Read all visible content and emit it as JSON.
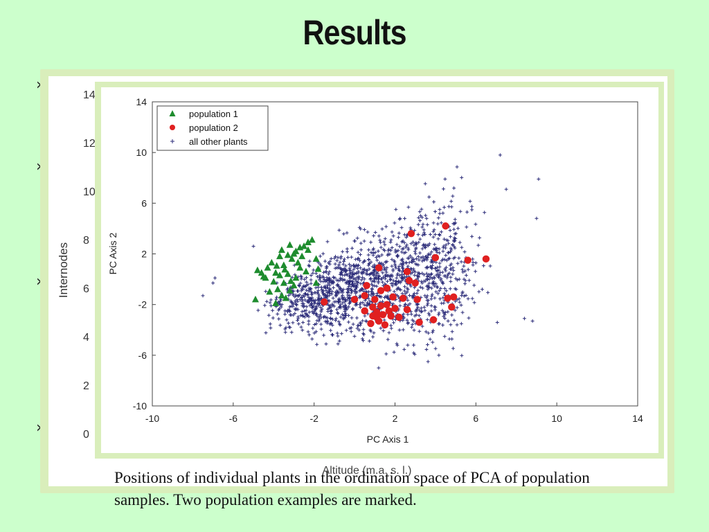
{
  "slide": {
    "title": "Results",
    "bullet_glyph": "›",
    "caption": "Positions of individual plants in the ordination space of PCA of population samples. Two population examples are marked."
  },
  "background_plot": {
    "ylabel": "Internodes",
    "xlabel": "Altitude (m.a. s. l.)",
    "y_ticks": [
      "14",
      "12",
      "10",
      "8",
      "6",
      "4",
      "2",
      "0"
    ]
  },
  "colors": {
    "slide_background": "#ccffcc",
    "frame": "#d9eebb",
    "population_1": "#1e8c2e",
    "population_2": "#e02020",
    "all_other_plants": "#2a2a78"
  },
  "chart_data": {
    "type": "scatter",
    "xlabel": "PC Axis 1",
    "ylabel": "PC Axis 2",
    "xlim": [
      -10,
      14
    ],
    "ylim": [
      -10,
      14
    ],
    "x_ticks": [
      -10,
      -6,
      -2,
      2,
      6,
      10,
      14
    ],
    "y_ticks": [
      -10,
      -6,
      -2,
      2,
      6,
      10,
      14
    ],
    "legend_position": "top-left",
    "series": [
      {
        "name": "population 1",
        "marker": "triangle",
        "points": [
          [
            -4.8,
            0.7
          ],
          [
            -4.5,
            0.2
          ],
          [
            -4.3,
            0.9
          ],
          [
            -4.1,
            1.3
          ],
          [
            -3.9,
            0.5
          ],
          [
            -3.7,
            1.8
          ],
          [
            -3.5,
            1.1
          ],
          [
            -3.3,
            0.4
          ],
          [
            -3.1,
            1.6
          ],
          [
            -2.9,
            2.2
          ],
          [
            -2.7,
            2.5
          ],
          [
            -2.5,
            2.6
          ],
          [
            -2.3,
            2.9
          ],
          [
            -2.1,
            3.1
          ],
          [
            -3.8,
            -0.8
          ],
          [
            -3.5,
            -0.3
          ],
          [
            -3.2,
            -0.9
          ],
          [
            -2.9,
            0.1
          ],
          [
            -2.7,
            0.9
          ],
          [
            -4.0,
            -0.2
          ],
          [
            -4.9,
            -1.6
          ],
          [
            -3.9,
            -1.9
          ],
          [
            -3.4,
            -1.5
          ],
          [
            -2.4,
            0.6
          ],
          [
            -1.9,
            1.6
          ],
          [
            -1.8,
            0.8
          ],
          [
            -1.9,
            -0.3
          ],
          [
            -3.6,
            2.3
          ],
          [
            -3.2,
            2.7
          ],
          [
            -2.8,
            1.3
          ],
          [
            -3.0,
            -0.5
          ],
          [
            -4.4,
            0.1
          ],
          [
            -3.7,
            0.3
          ],
          [
            -3.3,
            1.9
          ],
          [
            -2.6,
            1.8
          ],
          [
            -4.2,
            -1.0
          ],
          [
            -3.6,
            -1.3
          ],
          [
            -3.0,
            2.0
          ],
          [
            -2.3,
            2.3
          ],
          [
            -4.6,
            0.5
          ],
          [
            -3.85,
            1.05
          ],
          [
            -3.45,
            0.75
          ],
          [
            -3.15,
            -0.15
          ]
        ]
      },
      {
        "name": "population 2",
        "marker": "circle",
        "points": [
          [
            2.8,
            3.6
          ],
          [
            4.5,
            4.2
          ],
          [
            4.0,
            1.7
          ],
          [
            5.6,
            1.5
          ],
          [
            6.5,
            1.6
          ],
          [
            1.2,
            0.9
          ],
          [
            2.6,
            0.6
          ],
          [
            2.7,
            -0.1
          ],
          [
            3.0,
            -0.3
          ],
          [
            0.6,
            -0.5
          ],
          [
            1.3,
            -0.9
          ],
          [
            1.6,
            -0.7
          ],
          [
            0.5,
            -1.3
          ],
          [
            1.0,
            -1.6
          ],
          [
            1.9,
            -1.4
          ],
          [
            2.4,
            -1.5
          ],
          [
            3.1,
            -1.6
          ],
          [
            4.6,
            -1.5
          ],
          [
            4.9,
            -1.4
          ],
          [
            -1.5,
            -1.8
          ],
          [
            0.0,
            -1.6
          ],
          [
            0.5,
            -2.5
          ],
          [
            0.9,
            -2.2
          ],
          [
            1.1,
            -2.6
          ],
          [
            1.3,
            -2.1
          ],
          [
            1.4,
            -2.8
          ],
          [
            1.6,
            -2.0
          ],
          [
            1.8,
            -2.9
          ],
          [
            2.2,
            -3.0
          ],
          [
            2.6,
            -2.4
          ],
          [
            3.2,
            -3.4
          ],
          [
            3.9,
            -3.2
          ],
          [
            4.8,
            -2.2
          ],
          [
            0.8,
            -3.5
          ],
          [
            1.2,
            -3.3
          ],
          [
            1.5,
            -3.6
          ],
          [
            0.9,
            -2.9
          ],
          [
            2.0,
            -2.3
          ],
          [
            1.7,
            -2.5
          ],
          [
            1.1,
            -3.0
          ]
        ]
      },
      {
        "name": "all other plants",
        "marker": "plus"
      }
    ]
  }
}
